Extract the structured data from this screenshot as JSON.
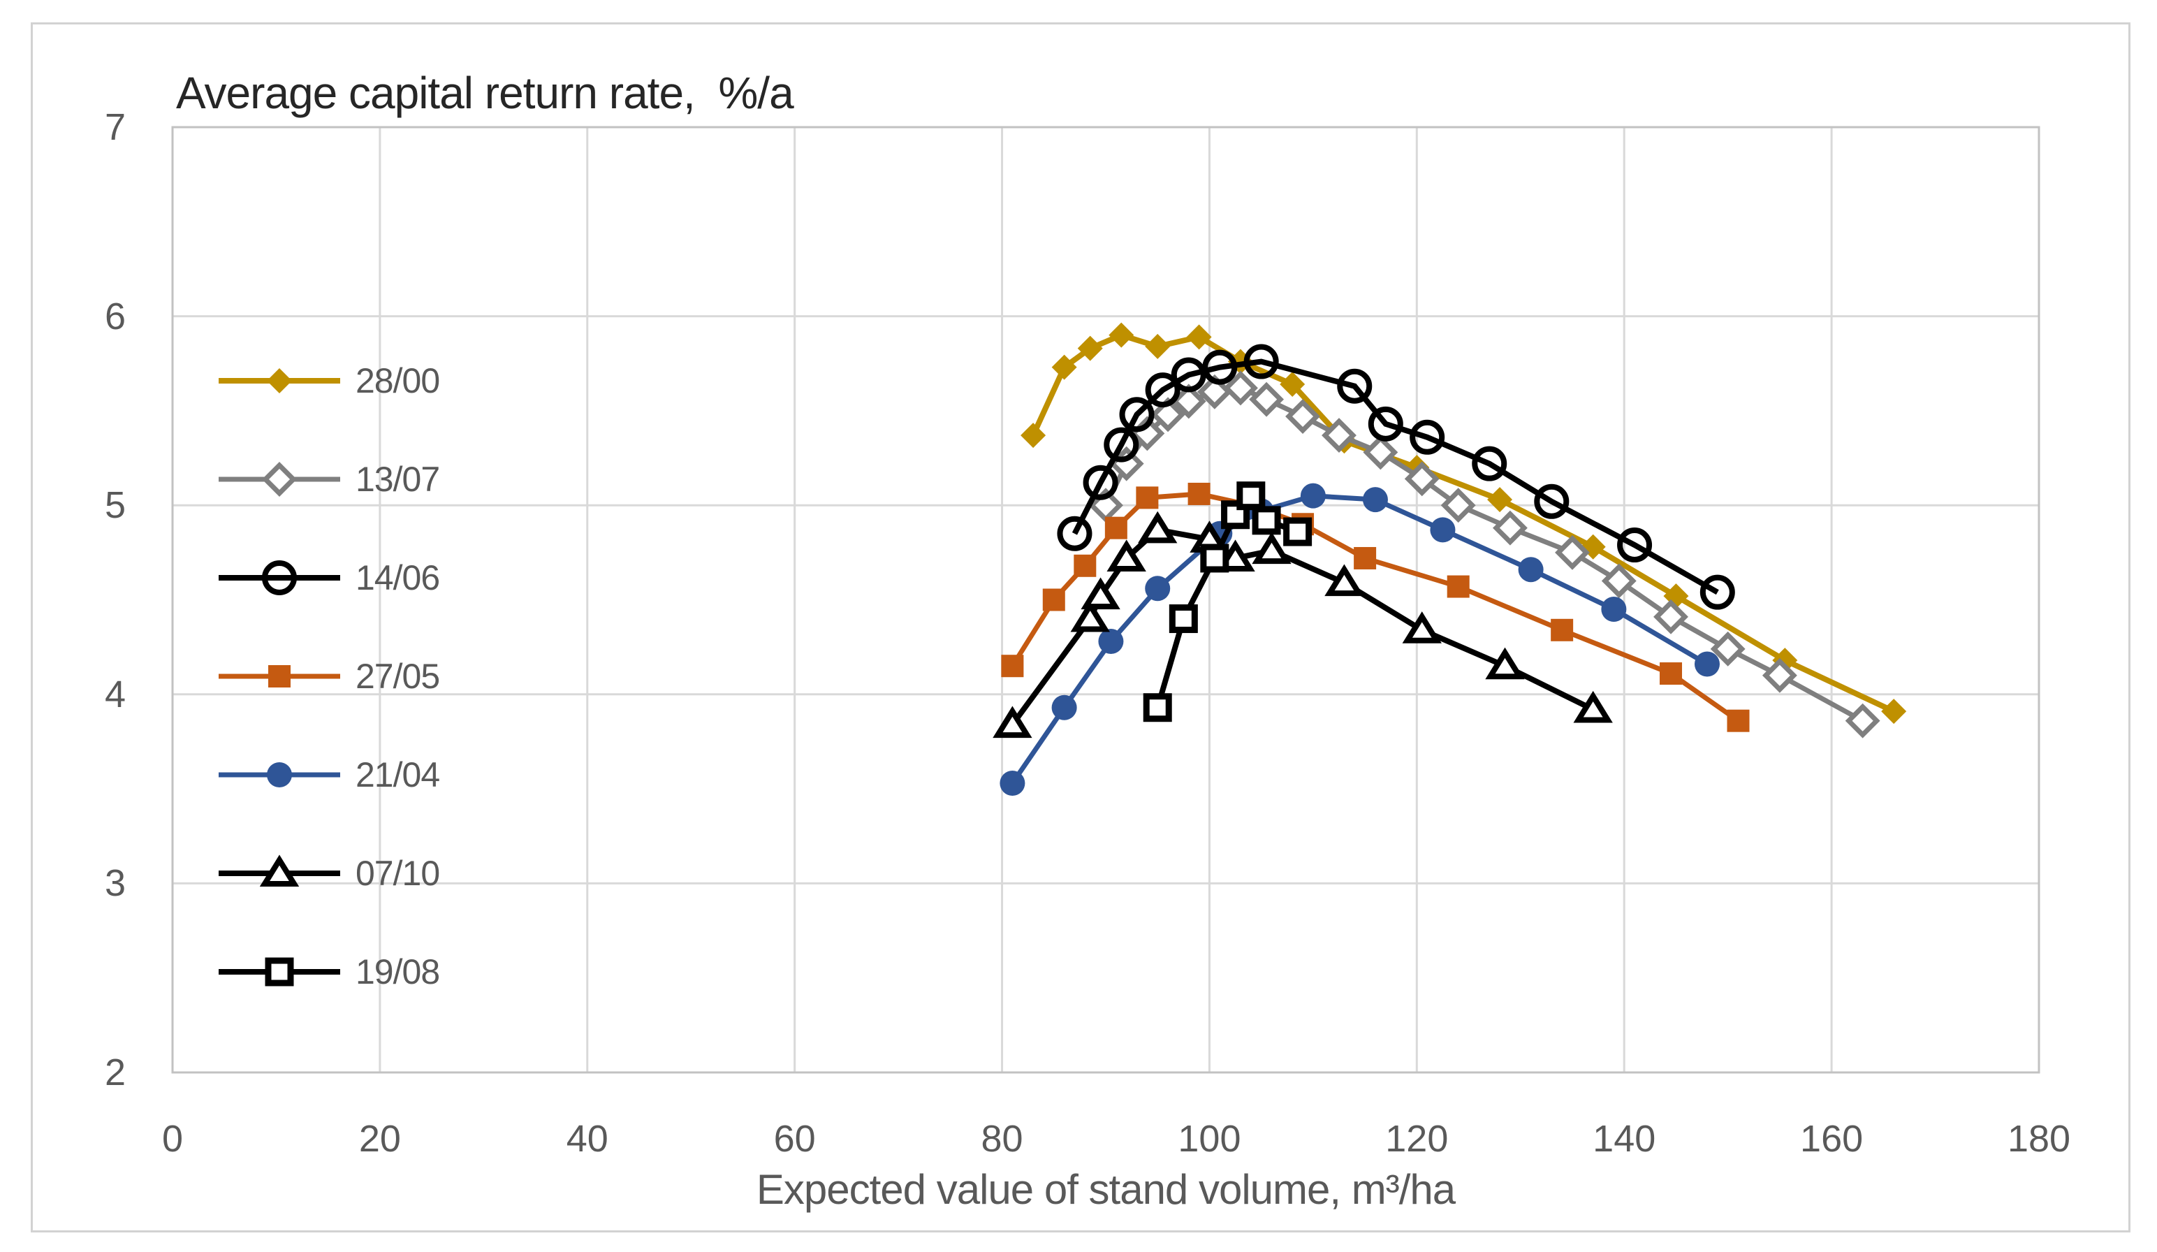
{
  "chart_data": {
    "type": "line",
    "title": "Average capital return rate,  %/a",
    "xlabel": "Expected value of stand volume, m³/ha",
    "ylabel": "",
    "xlim": [
      0,
      180
    ],
    "ylim": [
      2,
      7
    ],
    "x_ticks": [
      0,
      20,
      40,
      60,
      80,
      100,
      120,
      140,
      160,
      180
    ],
    "y_ticks": [
      7,
      6,
      5,
      4,
      3,
      2
    ],
    "grid": true,
    "legend_position": "inside-left",
    "colors": {
      "grid": "#d9d9d9",
      "plot_border": "#c2c2c2",
      "axis_text": "#595959",
      "title_text": "#262626",
      "gold": "#bf9000",
      "gray": "#7f7f7f",
      "black": "#000000",
      "orange": "#c55a11",
      "blue": "#2f5597"
    },
    "draw_order": [
      "28/00",
      "13/07",
      "27/05",
      "21/04",
      "14/06",
      "07/10",
      "19/08"
    ],
    "series": [
      {
        "name": "28/00",
        "color": "#bf9000",
        "marker": "diamond-filled",
        "line_width": 8,
        "points": [
          [
            83,
            5.37
          ],
          [
            86,
            5.73
          ],
          [
            88.5,
            5.83
          ],
          [
            91.5,
            5.9
          ],
          [
            95,
            5.84
          ],
          [
            99,
            5.89
          ],
          [
            103,
            5.76
          ],
          [
            108,
            5.64
          ],
          [
            113,
            5.34
          ],
          [
            120,
            5.2
          ],
          [
            128,
            5.03
          ],
          [
            137,
            4.78
          ],
          [
            145,
            4.52
          ],
          [
            155.5,
            4.18
          ],
          [
            166,
            3.91
          ]
        ]
      },
      {
        "name": "13/07",
        "color": "#7f7f7f",
        "marker": "diamond-open",
        "line_width": 7,
        "points": [
          [
            90,
            5.0
          ],
          [
            92,
            5.22
          ],
          [
            94,
            5.38
          ],
          [
            96,
            5.48
          ],
          [
            98,
            5.55
          ],
          [
            100.5,
            5.6
          ],
          [
            103,
            5.62
          ],
          [
            105.5,
            5.56
          ],
          [
            109,
            5.47
          ],
          [
            112.5,
            5.37
          ],
          [
            116.5,
            5.28
          ],
          [
            120.5,
            5.14
          ],
          [
            124,
            5.0
          ],
          [
            129,
            4.88
          ],
          [
            135,
            4.75
          ],
          [
            139.5,
            4.6
          ],
          [
            144.5,
            4.41
          ],
          [
            150,
            4.24
          ],
          [
            155,
            4.1
          ],
          [
            163,
            3.86
          ]
        ]
      },
      {
        "name": "14/06",
        "color": "#000000",
        "marker": "circle-open",
        "line_width": 8,
        "points": [
          [
            87,
            4.85
          ],
          [
            89.5,
            5.12
          ],
          [
            91.5,
            5.32
          ],
          [
            93,
            5.48
          ],
          [
            95.5,
            5.61
          ],
          [
            98,
            5.69
          ],
          [
            101,
            5.73
          ],
          [
            105,
            5.76
          ],
          [
            114,
            5.63
          ],
          [
            117,
            5.43
          ],
          [
            121,
            5.36
          ],
          [
            127,
            5.22
          ],
          [
            133,
            5.02
          ],
          [
            141,
            4.79
          ],
          [
            149,
            4.54
          ]
        ]
      },
      {
        "name": "27/05",
        "color": "#c55a11",
        "marker": "square-filled",
        "line_width": 7,
        "points": [
          [
            81,
            4.15
          ],
          [
            85,
            4.5
          ],
          [
            88,
            4.68
          ],
          [
            91,
            4.88
          ],
          [
            94,
            5.04
          ],
          [
            99,
            5.06
          ],
          [
            104,
            5.0
          ],
          [
            109,
            4.9
          ],
          [
            115,
            4.72
          ],
          [
            124,
            4.57
          ],
          [
            134,
            4.34
          ],
          [
            144.5,
            4.11
          ],
          [
            151,
            3.86
          ]
        ]
      },
      {
        "name": "21/04",
        "color": "#2f5597",
        "marker": "circle-filled",
        "line_width": 7,
        "points": [
          [
            81,
            3.53
          ],
          [
            86,
            3.93
          ],
          [
            90.5,
            4.28
          ],
          [
            95,
            4.56
          ],
          [
            101,
            4.85
          ],
          [
            105,
            4.97
          ],
          [
            110,
            5.05
          ],
          [
            116,
            5.03
          ],
          [
            122.5,
            4.87
          ],
          [
            131,
            4.66
          ],
          [
            139,
            4.45
          ],
          [
            148,
            4.16
          ]
        ]
      },
      {
        "name": "07/10",
        "color": "#000000",
        "marker": "triangle-open",
        "line_width": 8,
        "points": [
          [
            81,
            3.84
          ],
          [
            88.5,
            4.4
          ],
          [
            89.5,
            4.52
          ],
          [
            92,
            4.72
          ],
          [
            95,
            4.87
          ],
          [
            100,
            4.82
          ],
          [
            102.5,
            4.72
          ],
          [
            106,
            4.76
          ],
          [
            113,
            4.59
          ],
          [
            120.5,
            4.34
          ],
          [
            128.5,
            4.15
          ],
          [
            137,
            3.92
          ]
        ]
      },
      {
        "name": "19/08",
        "color": "#000000",
        "marker": "square-open",
        "line_width": 8,
        "points": [
          [
            95,
            3.93
          ],
          [
            97.5,
            4.4
          ],
          [
            100.5,
            4.72
          ],
          [
            102.5,
            4.95
          ],
          [
            104,
            5.05
          ],
          [
            105.5,
            4.92
          ],
          [
            108.5,
            4.86
          ]
        ]
      }
    ]
  }
}
